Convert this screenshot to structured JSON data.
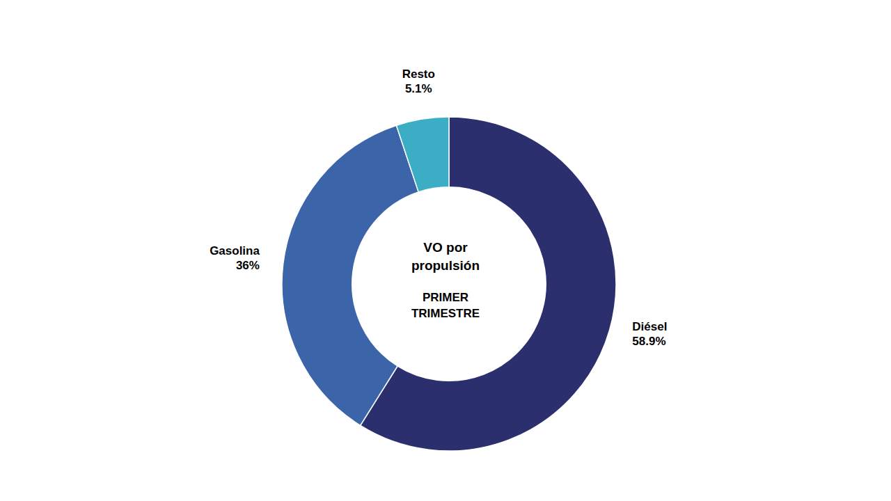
{
  "chart_data": {
    "type": "pie",
    "categories": [
      "Diésel",
      "Gasolina",
      "Resto"
    ],
    "values": [
      58.9,
      36.0,
      5.1
    ],
    "value_labels": [
      "58.9%",
      "36%",
      "5.1%"
    ],
    "colors": [
      "#2B2F6E",
      "#3B65A8",
      "#3BAEC6"
    ],
    "data_labels": true,
    "annotations": [
      "VO por\npropulsión",
      "PRIMER\nTRIMESTRE"
    ]
  }
}
